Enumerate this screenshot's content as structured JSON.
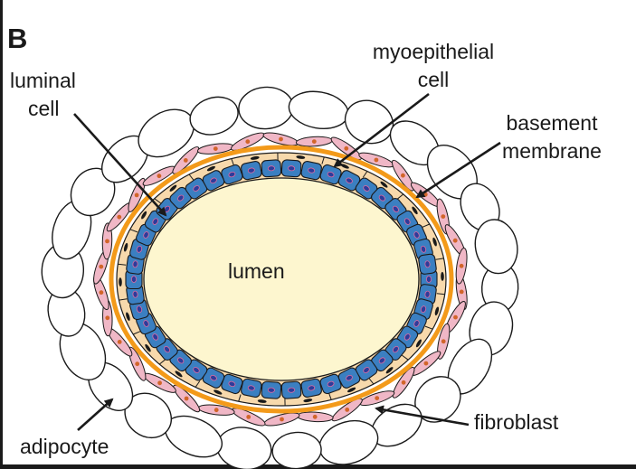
{
  "panel_letter": "B",
  "labels": {
    "luminal_cell": [
      "luminal",
      "cell"
    ],
    "myoepithelial_cell": [
      "myoepithelial",
      "cell"
    ],
    "basement_membrane": [
      "basement",
      "membrane"
    ],
    "lumen": "lumen",
    "fibroblast": "fibroblast",
    "adipocyte": "adipocyte"
  },
  "colors": {
    "lumen_fill": "#fdf6cf",
    "luminal_cell_fill": "#3b7fc1",
    "luminal_nucleus": "#2d3c9a",
    "myoepithelial_fill": "#f7d9ac",
    "basement_membrane": "#f39a1a",
    "fibroblast_fill": "#f0b7c6",
    "fibroblast_nucleus": "#d2652a",
    "adipocyte_fill": "#ffffff",
    "outline": "#1a1a1a"
  }
}
